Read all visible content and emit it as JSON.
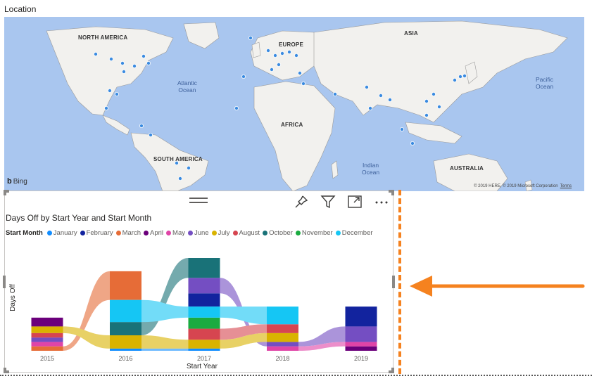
{
  "map": {
    "title": "Location",
    "regions": [
      "NORTH AMERICA",
      "EUROPE",
      "ASIA",
      "AFRICA",
      "SOUTH AMERICA",
      "AUSTRALIA"
    ],
    "oceans": [
      "Atlantic\nOcean",
      "Pacific\nOcean",
      "Indian\nOcean"
    ],
    "bing_label": "Bing",
    "copyright": "© 2019 HERE, © 2019 Microsoft Corporation",
    "terms": "Terms",
    "water_color": "#a9c6ef",
    "land_color": "#f2f1ee",
    "dot_color": "#3b8be0"
  },
  "visual": {
    "title": "Days Off by Start Year and Start Month",
    "toolbar": [
      "pin-icon",
      "filter-icon",
      "focus-mode-icon",
      "more-options-icon"
    ],
    "legend_title": "Start Month"
  },
  "chart_data": {
    "type": "bar",
    "title": "Days Off by Start Year and Start Month",
    "xlabel": "Start Year",
    "ylabel": "Days Off",
    "categories": [
      "2015",
      "2016",
      "2017",
      "2018",
      "2019"
    ],
    "legend_placement": "top-left",
    "series": [
      {
        "name": "January",
        "color": "#118dff",
        "values": [
          0,
          1,
          1,
          0,
          0
        ]
      },
      {
        "name": "February",
        "color": "#12239e",
        "values": [
          0,
          0,
          6,
          0,
          9
        ]
      },
      {
        "name": "March",
        "color": "#e66c37",
        "values": [
          2,
          13,
          0,
          0,
          0
        ]
      },
      {
        "name": "April",
        "color": "#6b007b",
        "values": [
          4,
          0,
          0,
          0,
          2
        ]
      },
      {
        "name": "May",
        "color": "#e044a7",
        "values": [
          2,
          0,
          0,
          2,
          2
        ]
      },
      {
        "name": "June",
        "color": "#744ec2",
        "values": [
          2,
          0,
          7,
          2,
          7
        ]
      },
      {
        "name": "July",
        "color": "#d9b300",
        "values": [
          3,
          6,
          4,
          4,
          0
        ]
      },
      {
        "name": "August",
        "color": "#d64550",
        "values": [
          2,
          0,
          5,
          4,
          0
        ]
      },
      {
        "name": "October",
        "color": "#197278",
        "values": [
          0,
          6,
          9,
          0,
          0
        ]
      },
      {
        "name": "November",
        "color": "#1aab40",
        "values": [
          0,
          0,
          5,
          0,
          0
        ]
      },
      {
        "name": "December",
        "color": "#15c6f4",
        "values": [
          0,
          10,
          5,
          8,
          0
        ]
      }
    ]
  },
  "annotation": {
    "color": "#f5821f"
  }
}
